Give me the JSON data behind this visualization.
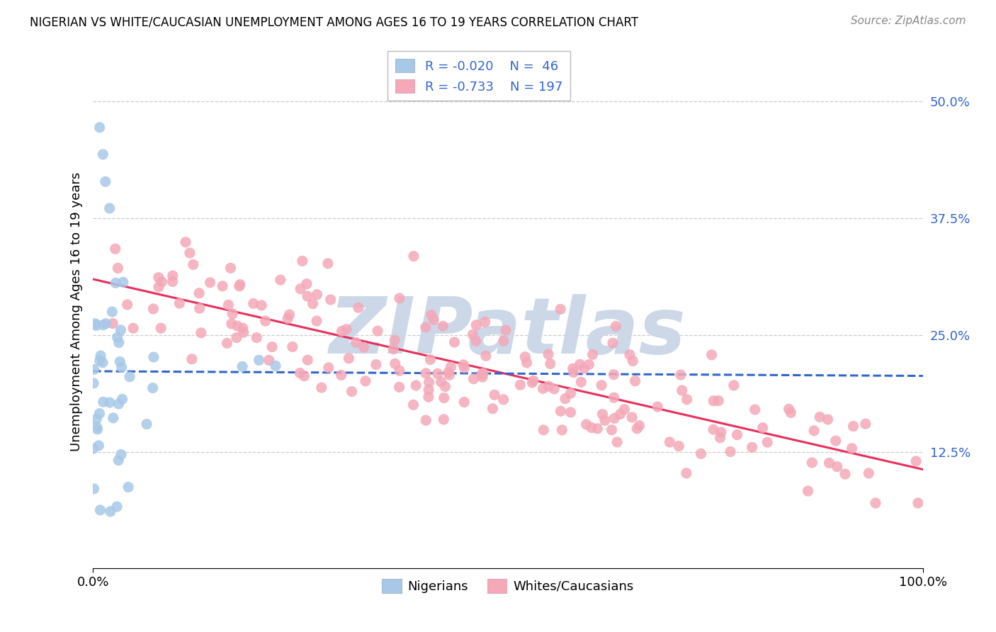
{
  "title": "NIGERIAN VS WHITE/CAUCASIAN UNEMPLOYMENT AMONG AGES 16 TO 19 YEARS CORRELATION CHART",
  "source": "Source: ZipAtlas.com",
  "ylabel": "Unemployment Among Ages 16 to 19 years",
  "xmin": 0.0,
  "xmax": 1.0,
  "ymin": 0.0,
  "ymax": 0.55,
  "yticks": [
    0.125,
    0.25,
    0.375,
    0.5
  ],
  "ytick_labels": [
    "12.5%",
    "25.0%",
    "37.5%",
    "50.0%"
  ],
  "xtick_positions": [
    0.0,
    1.0
  ],
  "xtick_labels": [
    "0.0%",
    "100.0%"
  ],
  "nigerian_R": -0.02,
  "nigerian_N": 46,
  "caucasian_R": -0.733,
  "caucasian_N": 197,
  "nigerian_color": "#a8c8e8",
  "caucasian_color": "#f4a8b8",
  "nigerian_line_color": "#3366cc",
  "caucasian_line_color": "#e8305a",
  "legend_text_color": "#3366cc",
  "watermark_text": "ZIPatlas",
  "watermark_color": "#ccd8e8",
  "background_color": "#ffffff",
  "grid_color": "#cccccc"
}
